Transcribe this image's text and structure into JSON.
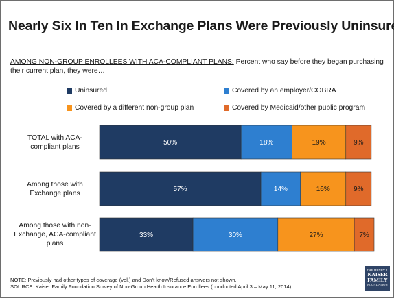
{
  "title": "Nearly Six In Ten In Exchange Plans Were Previously Uninsured",
  "subtitle": {
    "lead": "AMONG NON-GROUP ENROLLEES WITH ACA-COMPLIANT PLANS:",
    "rest": " Percent who say before they began purchasing their current plan, they were…"
  },
  "colors": {
    "uninsured": "#1f3b63",
    "employer": "#2e7fd0",
    "nongroup": "#f7941d",
    "medicaid": "#e06a2a",
    "logo": "#2f4466"
  },
  "chart_data": {
    "type": "bar",
    "orientation": "horizontal",
    "stacked": true,
    "categories": [
      "TOTAL with ACA-compliant plans",
      "Among those with Exchange plans",
      "Among those with non-Exchange, ACA-compliant plans"
    ],
    "category_lines": [
      [
        "TOTAL with ACA-",
        "compliant plans"
      ],
      [
        "Among those with",
        "Exchange plans"
      ],
      [
        "Among those with non-",
        "Exchange, ACA-compliant",
        "plans"
      ]
    ],
    "series": [
      {
        "name": "Uninsured",
        "color": "#1f3b63",
        "values": [
          50,
          57,
          33
        ]
      },
      {
        "name": "Covered by an employer/COBRA",
        "color": "#2e7fd0",
        "values": [
          18,
          14,
          30
        ]
      },
      {
        "name": "Covered by a different non-group plan",
        "color": "#f7941d",
        "values": [
          19,
          16,
          27
        ]
      },
      {
        "name": "Covered by Medicaid/other public program",
        "color": "#e06a2a",
        "values": [
          9,
          9,
          7
        ]
      }
    ],
    "data_labels": [
      [
        "50%",
        "57%",
        "33%"
      ],
      [
        "18%",
        "14%",
        "30%"
      ],
      [
        "19%",
        "16%",
        "27%"
      ],
      [
        "9%",
        "9%",
        "7%"
      ]
    ],
    "legend": "top",
    "grid": false
  },
  "notes": {
    "note": "NOTE: Previously had other types of coverage (vol.) and Don’t know/Refused answers not shown.",
    "source": "SOURCE: Kaiser Family Foundation Survey of Non-Group Health Insurance Enrollees (conducted April 3 – May 11, 2014)"
  },
  "logo": {
    "line1": "THE HENRY J.",
    "line2a": "KAISER",
    "line2b": "FAMILY",
    "line3": "FOUNDATION"
  }
}
